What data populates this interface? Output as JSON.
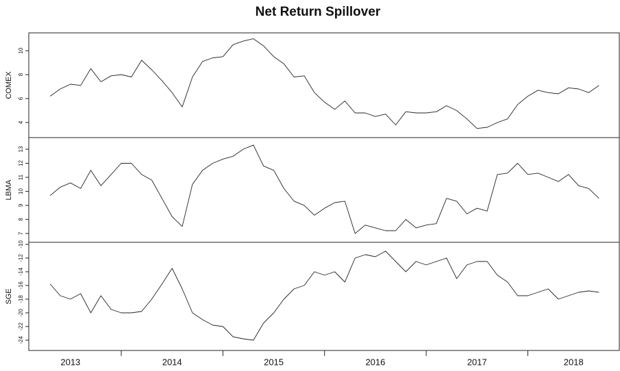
{
  "chart_data": {
    "type": "line",
    "title": "Net Return Spillover",
    "x": [
      2013.3,
      2013.4,
      2013.5,
      2013.6,
      2013.7,
      2013.8,
      2013.9,
      2014.0,
      2014.1,
      2014.2,
      2014.3,
      2014.4,
      2014.5,
      2014.6,
      2014.7,
      2014.8,
      2014.9,
      2015.0,
      2015.1,
      2015.2,
      2015.3,
      2015.4,
      2015.5,
      2015.6,
      2015.7,
      2015.8,
      2015.9,
      2016.0,
      2016.1,
      2016.2,
      2016.3,
      2016.4,
      2016.5,
      2016.6,
      2016.7,
      2016.8,
      2016.9,
      2017.0,
      2017.1,
      2017.2,
      2017.3,
      2017.4,
      2017.5,
      2017.6,
      2017.7,
      2017.8,
      2017.9,
      2018.0,
      2018.1,
      2018.2,
      2018.3,
      2018.4,
      2018.5,
      2018.6,
      2018.7
    ],
    "xlim": [
      2013.09,
      2018.9
    ],
    "xticks": [
      {
        "value": 2013.5,
        "label": "2013"
      },
      {
        "value": 2014.5,
        "label": "2014"
      },
      {
        "value": 2015.5,
        "label": "2015"
      },
      {
        "value": 2016.5,
        "label": "2016"
      },
      {
        "value": 2017.5,
        "label": "2017"
      },
      {
        "value": 2018.45,
        "label": "2018"
      }
    ],
    "xtick_marks": [
      2014,
      2015,
      2016,
      2017,
      2018
    ],
    "color": "#222222",
    "panels": [
      {
        "ylabel": "COMEX",
        "ylim": [
          2.74,
          11.49
        ],
        "yticks": [
          4,
          6,
          8,
          10
        ],
        "values": [
          6.2,
          6.8,
          7.2,
          7.1,
          8.5,
          7.4,
          7.9,
          8.0,
          7.8,
          9.2,
          8.4,
          7.5,
          6.5,
          5.3,
          7.8,
          9.1,
          9.4,
          9.5,
          10.5,
          10.8,
          11.0,
          10.4,
          9.5,
          8.9,
          7.8,
          7.9,
          6.5,
          5.7,
          5.1,
          5.8,
          4.8,
          4.8,
          4.5,
          4.7,
          3.8,
          4.9,
          4.8,
          4.8,
          4.9,
          5.4,
          5.0,
          4.3,
          3.5,
          3.6,
          4.0,
          4.3,
          5.5,
          6.2,
          6.7,
          6.5,
          6.4,
          6.9,
          6.8,
          6.5,
          7.1
        ]
      },
      {
        "ylabel": "LBMA",
        "ylim": [
          6.37,
          13.83
        ],
        "yticks": [
          7,
          8,
          9,
          10,
          11,
          12,
          13
        ],
        "values": [
          9.7,
          10.3,
          10.6,
          10.2,
          11.5,
          10.4,
          11.2,
          12.0,
          12.0,
          11.2,
          10.8,
          9.5,
          8.2,
          7.5,
          10.5,
          11.5,
          12.0,
          12.3,
          12.5,
          13.0,
          13.3,
          11.8,
          11.5,
          10.2,
          9.3,
          9.0,
          8.3,
          8.8,
          9.2,
          9.3,
          7.0,
          7.6,
          7.4,
          7.2,
          7.2,
          8.0,
          7.4,
          7.6,
          7.7,
          9.5,
          9.3,
          8.4,
          8.8,
          8.6,
          11.2,
          11.3,
          12.0,
          11.2,
          11.3,
          11.0,
          10.7,
          11.2,
          10.4,
          10.2,
          9.5
        ]
      },
      {
        "ylabel": "SGE",
        "ylim": [
          -25.5,
          -9.7
        ],
        "yticks": [
          -24,
          -22,
          -20,
          -18,
          -16,
          -14,
          -12,
          -10
        ],
        "values": [
          -15.8,
          -17.5,
          -18.0,
          -17.2,
          -20.0,
          -17.5,
          -19.5,
          -20.0,
          -20.0,
          -19.8,
          -18.0,
          -15.8,
          -13.5,
          -16.5,
          -20.0,
          -21.0,
          -21.8,
          -22.0,
          -23.5,
          -23.8,
          -24.0,
          -21.5,
          -20.0,
          -18.0,
          -16.5,
          -16.0,
          -14.0,
          -14.5,
          -14.0,
          -15.5,
          -12.0,
          -11.5,
          -11.8,
          -11.0,
          -12.5,
          -14.0,
          -12.5,
          -13.0,
          -12.5,
          -12.0,
          -15.0,
          -13.0,
          -12.5,
          -12.5,
          -14.5,
          -15.5,
          -17.5,
          -17.5,
          -17.0,
          -16.5,
          -18.0,
          -17.5,
          -17.0,
          -16.8,
          -17.0
        ]
      }
    ]
  }
}
